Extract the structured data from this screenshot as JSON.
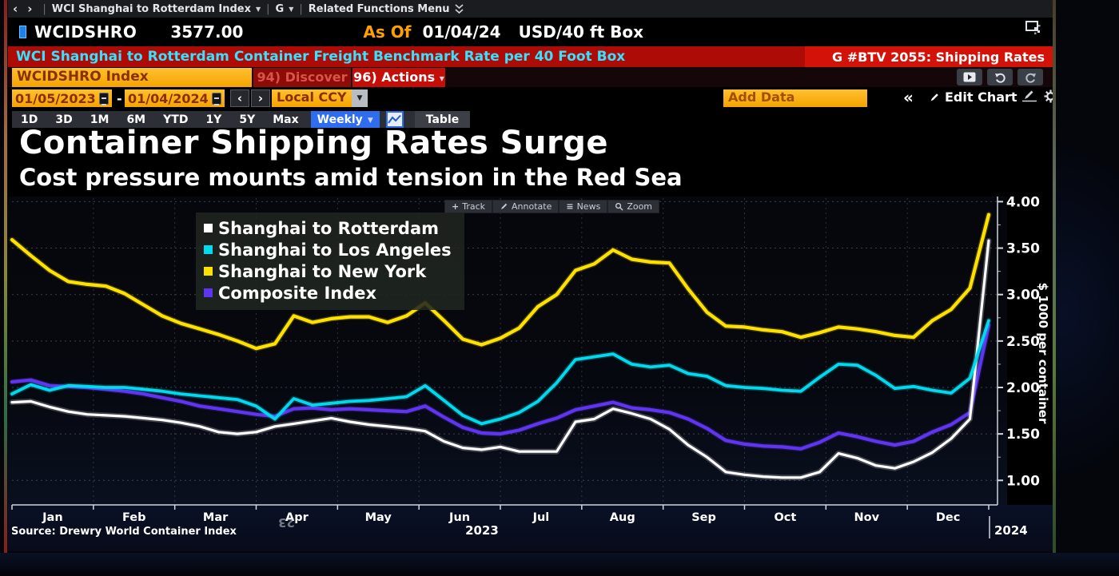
{
  "window": {
    "nav": {
      "security_menu": "WCI Shanghai to Rotterdam Index",
      "g_menu": "G",
      "related_menu": "Related Functions Menu"
    },
    "quote": {
      "ticker": "WCIDSHRO",
      "last": "3577.00",
      "as_of_label": "As Of",
      "as_of_date": "01/04/24",
      "unit": "USD/40 ft Box"
    },
    "red_bar": {
      "description": "WCI Shanghai to Rotterdam Container Freight Benchmark Rate per 40 Foot Box",
      "chart_ref": "G #BTV 2055: Shipping Rates"
    },
    "command_row": {
      "security_field": "WCIDSHRO Index",
      "discover": "94) Discover",
      "actions": "96) Actions"
    },
    "toolbar": {
      "start_date": "01/05/2023",
      "range_sep": "-",
      "end_date": "01/04/2024",
      "currency": "Local CCY",
      "add_data": "Add Data",
      "edit_chart": "Edit Chart"
    },
    "periods": [
      "1D",
      "3D",
      "1M",
      "6M",
      "YTD",
      "1Y",
      "5Y",
      "Max"
    ],
    "frequency": "Weekly",
    "table_label": "Table",
    "chart_tools": [
      {
        "label": "Track",
        "icon": "plus-icon"
      },
      {
        "label": "Annotate",
        "icon": "pencil-icon"
      },
      {
        "label": "News",
        "icon": "news-icon"
      },
      {
        "label": "Zoom",
        "icon": "zoom-icon"
      }
    ],
    "icons": {
      "top_right": "open-in-window-icon",
      "history": [
        "play-panel-icon",
        "undo-icon",
        "redo-icon"
      ],
      "edit_row": [
        "collapse-chevrons-icon",
        "pencil-icon",
        "annotate-chart-icon",
        "gear-icon"
      ]
    }
  },
  "chart": {
    "title": "Container Shipping Rates Surge",
    "subtitle": "Cost pressure mounts amid tension in the Red Sea",
    "source": "Source: Drewry World Container Index",
    "reflection_artifact": "23"
  },
  "chart_data": {
    "type": "line",
    "title": "Container Shipping Rates Surge",
    "subtitle": "Cost pressure mounts amid tension in the Red Sea",
    "ylabel": "$ 1000 per container",
    "x_unit": "weekly, Jan 2023 - Jan 2024",
    "x_tick_labels": [
      "Jan",
      "Feb",
      "Mar",
      "Apr",
      "May",
      "Jun",
      "Jul",
      "Aug",
      "Sep",
      "Oct",
      "Nov",
      "Dec"
    ],
    "year_labels": [
      "2023",
      "2024"
    ],
    "y_ticks": [
      1.0,
      1.5,
      2.0,
      2.5,
      3.0,
      3.5,
      4.0
    ],
    "ylim": [
      0.73,
      4.03
    ],
    "grid": true,
    "legend_position": "top-left",
    "series": [
      {
        "name": "Shanghai to Rotterdam",
        "color": "#ffffff",
        "values": [
          1.84,
          1.85,
          1.79,
          1.74,
          1.71,
          1.7,
          1.69,
          1.67,
          1.65,
          1.62,
          1.58,
          1.52,
          1.5,
          1.52,
          1.58,
          1.61,
          1.64,
          1.67,
          1.63,
          1.6,
          1.58,
          1.56,
          1.53,
          1.42,
          1.35,
          1.33,
          1.36,
          1.31,
          1.31,
          1.31,
          1.63,
          1.66,
          1.77,
          1.72,
          1.66,
          1.55,
          1.38,
          1.25,
          1.09,
          1.06,
          1.04,
          1.03,
          1.03,
          1.09,
          1.29,
          1.24,
          1.16,
          1.13,
          1.2,
          1.3,
          1.45,
          1.66,
          3.58
        ]
      },
      {
        "name": "Shanghai to Los Angeles",
        "color": "#00d9ee",
        "values": [
          1.93,
          2.03,
          1.97,
          2.02,
          2.01,
          2.0,
          2.0,
          1.98,
          1.96,
          1.93,
          1.91,
          1.89,
          1.87,
          1.8,
          1.66,
          1.88,
          1.81,
          1.83,
          1.85,
          1.86,
          1.88,
          1.9,
          2.02,
          1.86,
          1.7,
          1.61,
          1.66,
          1.73,
          1.85,
          2.05,
          2.3,
          2.33,
          2.36,
          2.25,
          2.22,
          2.24,
          2.15,
          2.12,
          2.02,
          2.0,
          1.99,
          1.97,
          1.96,
          2.11,
          2.25,
          2.24,
          2.13,
          1.99,
          2.01,
          1.97,
          1.94,
          2.1,
          2.72
        ]
      },
      {
        "name": "Shanghai to New York",
        "color": "#ffe100",
        "values": [
          3.59,
          3.42,
          3.26,
          3.14,
          3.11,
          3.09,
          3.01,
          2.89,
          2.77,
          2.69,
          2.63,
          2.57,
          2.5,
          2.42,
          2.47,
          2.77,
          2.7,
          2.74,
          2.76,
          2.76,
          2.7,
          2.77,
          2.91,
          2.72,
          2.52,
          2.46,
          2.53,
          2.64,
          2.87,
          3.0,
          3.26,
          3.33,
          3.48,
          3.38,
          3.35,
          3.34,
          3.06,
          2.81,
          2.66,
          2.65,
          2.62,
          2.6,
          2.54,
          2.59,
          2.65,
          2.63,
          2.6,
          2.56,
          2.54,
          2.72,
          2.84,
          3.07,
          3.86
        ]
      },
      {
        "name": "Composite Index",
        "color": "#5f35f2",
        "values": [
          2.06,
          2.08,
          2.02,
          2.01,
          2.0,
          1.98,
          1.96,
          1.93,
          1.89,
          1.85,
          1.8,
          1.77,
          1.74,
          1.71,
          1.69,
          1.77,
          1.78,
          1.76,
          1.77,
          1.76,
          1.75,
          1.74,
          1.8,
          1.68,
          1.57,
          1.51,
          1.5,
          1.54,
          1.61,
          1.67,
          1.76,
          1.8,
          1.84,
          1.78,
          1.76,
          1.73,
          1.66,
          1.56,
          1.43,
          1.39,
          1.37,
          1.36,
          1.34,
          1.41,
          1.51,
          1.47,
          1.42,
          1.38,
          1.42,
          1.52,
          1.6,
          1.73,
          2.67
        ]
      }
    ]
  }
}
